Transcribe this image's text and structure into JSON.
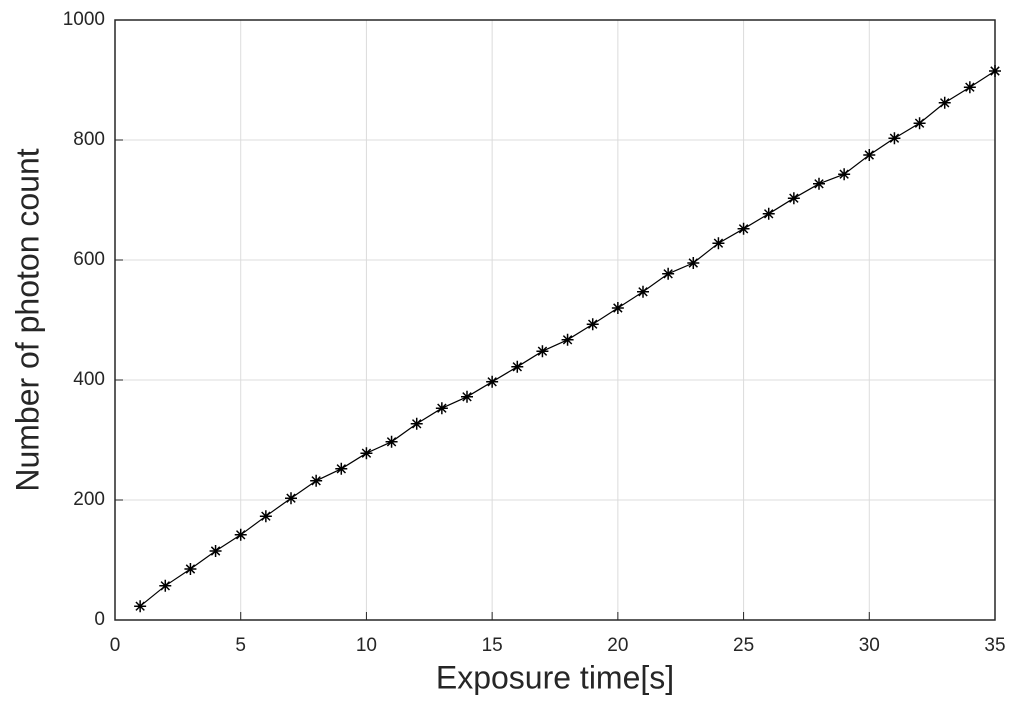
{
  "chart_data": {
    "type": "line",
    "xlabel": "Exposure time[s]",
    "ylabel": "Number of photon count",
    "x": [
      1,
      2,
      3,
      4,
      5,
      6,
      7,
      8,
      9,
      10,
      11,
      12,
      13,
      14,
      15,
      16,
      17,
      18,
      19,
      20,
      21,
      22,
      23,
      24,
      25,
      26,
      27,
      28,
      29,
      30,
      31,
      32,
      33,
      34,
      35
    ],
    "series": [
      {
        "color": "#000000",
        "marker": "asterisk",
        "values": [
          23,
          57,
          85,
          115,
          142,
          173,
          203,
          232,
          252,
          278,
          297,
          327,
          353,
          372,
          397,
          422,
          448,
          467,
          493,
          520,
          547,
          577,
          595,
          628,
          652,
          677,
          703,
          727,
          743,
          775,
          803,
          828,
          862,
          888,
          915
        ]
      }
    ],
    "xlim": [
      0,
      35
    ],
    "xticks": [
      0,
      5,
      10,
      15,
      20,
      25,
      30,
      35
    ],
    "ylim": [
      0,
      1000
    ],
    "yticks": [
      0,
      200,
      400,
      600,
      800,
      1000
    ],
    "grid": true
  }
}
